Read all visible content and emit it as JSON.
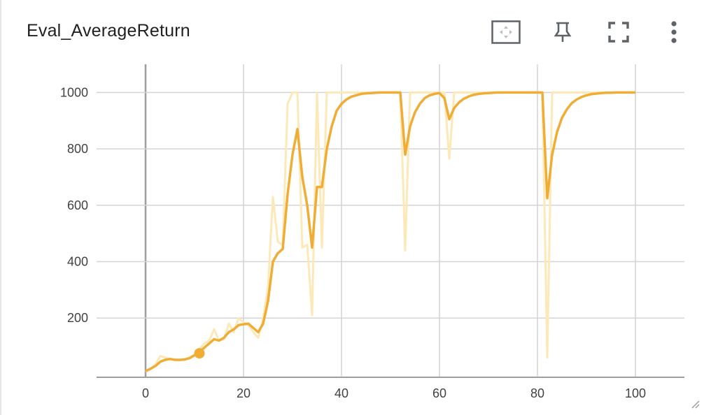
{
  "card": {
    "title": "Eval_AverageReturn",
    "icons": [
      "fit-domain-icon",
      "pin-icon",
      "fullscreen-icon",
      "more-vert-icon",
      "resize-handle-icon"
    ]
  },
  "colors": {
    "smoothed": "#f0ad35",
    "raw": "#fde8b8",
    "grid": "#d4d4d4",
    "zero_axis": "#9e9e9e",
    "icon": "#5f6368"
  },
  "chart_data": {
    "type": "line",
    "title": "Eval_AverageReturn",
    "xlabel": "",
    "ylabel": "",
    "xlim": [
      -10,
      110
    ],
    "ylim": [
      -10,
      1100
    ],
    "x_ticks": [
      "0",
      "20",
      "40",
      "60",
      "80",
      "100"
    ],
    "x_tick_values": [
      0,
      20,
      40,
      60,
      80,
      100
    ],
    "y_ticks": [
      "200",
      "400",
      "600",
      "800",
      "1000"
    ],
    "y_tick_values": [
      200,
      400,
      600,
      800,
      1000
    ],
    "grid": true,
    "highlight_point": {
      "x": 11,
      "y": 75
    },
    "series": [
      {
        "role": "raw",
        "x": [
          0,
          1,
          2,
          3,
          4,
          5,
          6,
          7,
          8,
          9,
          10,
          11,
          12,
          13,
          14,
          15,
          16,
          17,
          18,
          19,
          20,
          21,
          22,
          23,
          24,
          25,
          26,
          27,
          28,
          29,
          30,
          31,
          32,
          33,
          34,
          35,
          36,
          37,
          38,
          39,
          40,
          41,
          42,
          43,
          44,
          45,
          46,
          47,
          48,
          49,
          50,
          51,
          52,
          53,
          54,
          55,
          56,
          57,
          58,
          59,
          60,
          61,
          62,
          63,
          64,
          65,
          66,
          67,
          68,
          69,
          70,
          71,
          72,
          73,
          74,
          75,
          76,
          77,
          78,
          79,
          80,
          81,
          82,
          83,
          84,
          85,
          86,
          87,
          88,
          89,
          90,
          91,
          92,
          93,
          94,
          95,
          96,
          97,
          98,
          99,
          100
        ],
        "y": [
          10,
          20,
          35,
          65,
          60,
          55,
          50,
          50,
          55,
          60,
          70,
          90,
          110,
          120,
          160,
          120,
          125,
          180,
          150,
          200,
          185,
          175,
          150,
          130,
          200,
          310,
          630,
          470,
          460,
          960,
          1000,
          1000,
          450,
          460,
          210,
          1000,
          450,
          1000,
          1000,
          1000,
          1000,
          1000,
          1000,
          1000,
          1000,
          1000,
          1000,
          1000,
          1000,
          1000,
          1000,
          1000,
          1000,
          440,
          1000,
          1000,
          1000,
          1000,
          1000,
          1000,
          1000,
          1000,
          765,
          1000,
          1000,
          1000,
          1000,
          1000,
          1000,
          1000,
          1000,
          1000,
          1000,
          1000,
          1000,
          1000,
          1000,
          1000,
          1000,
          1000,
          1000,
          1000,
          60,
          1000,
          1000,
          1000,
          1000,
          1000,
          1000,
          1000,
          1000,
          1000,
          1000,
          1000,
          1000,
          1000,
          1000,
          1000,
          1000,
          1000,
          1000
        ]
      },
      {
        "role": "smoothed",
        "x": [
          0,
          1,
          2,
          3,
          4,
          5,
          6,
          7,
          8,
          9,
          10,
          11,
          12,
          13,
          14,
          15,
          16,
          17,
          18,
          19,
          20,
          21,
          22,
          23,
          24,
          25,
          26,
          27,
          28,
          29,
          30,
          31,
          32,
          33,
          34,
          35,
          36,
          37,
          38,
          39,
          40,
          41,
          42,
          43,
          44,
          45,
          46,
          47,
          48,
          49,
          50,
          51,
          52,
          53,
          54,
          55,
          56,
          57,
          58,
          59,
          60,
          61,
          62,
          63,
          64,
          65,
          66,
          67,
          68,
          69,
          70,
          71,
          72,
          73,
          74,
          75,
          76,
          77,
          78,
          79,
          80,
          81,
          82,
          83,
          84,
          85,
          86,
          87,
          88,
          89,
          90,
          91,
          92,
          93,
          94,
          95,
          96,
          97,
          98,
          99,
          100
        ],
        "y": [
          12,
          20,
          30,
          45,
          52,
          55,
          52,
          52,
          53,
          58,
          68,
          80,
          95,
          110,
          125,
          120,
          130,
          150,
          160,
          175,
          178,
          180,
          165,
          150,
          180,
          260,
          400,
          430,
          445,
          640,
          780,
          870,
          700,
          600,
          450,
          665,
          665,
          800,
          880,
          935,
          960,
          975,
          985,
          990,
          995,
          997,
          998,
          999,
          1000,
          1000,
          1000,
          1000,
          1000,
          780,
          880,
          930,
          960,
          980,
          990,
          995,
          998,
          980,
          905,
          945,
          965,
          978,
          986,
          992,
          995,
          997,
          998,
          999,
          1000,
          1000,
          1000,
          1000,
          1000,
          1000,
          1000,
          1000,
          1000,
          1000,
          625,
          780,
          860,
          910,
          940,
          962,
          975,
          984,
          990,
          994,
          996,
          998,
          999,
          999,
          1000,
          1000,
          1000,
          1000,
          1000
        ]
      }
    ]
  }
}
